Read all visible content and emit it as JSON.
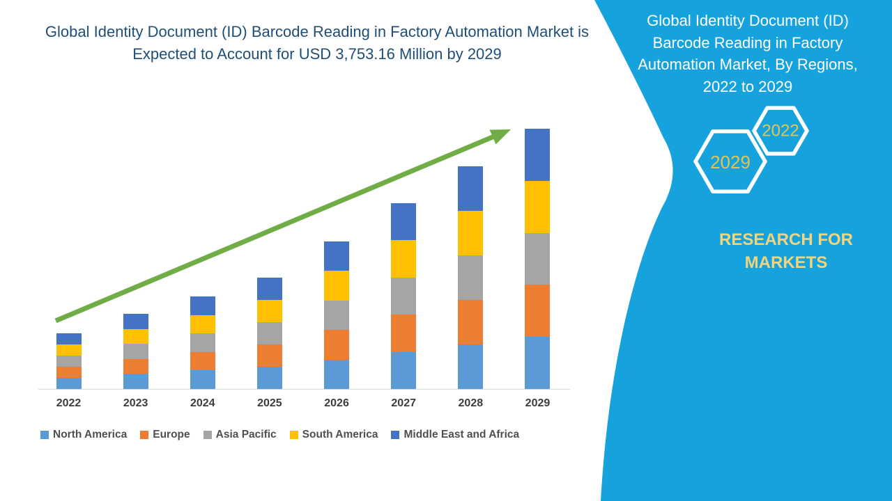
{
  "left_panel": {
    "title": "Global Identity Document (ID) Barcode Reading in Factory Automation Market is Expected to Account for USD 3,753.16 Million by 2029",
    "title_color": "#1F4E79"
  },
  "chart_data": {
    "type": "bar",
    "stacked": true,
    "title": "Global Identity Document (ID) Barcode Reading in Factory Automation Market is Expected to Account for USD 3,753.16 Million by 2029",
    "unit": "USD Million",
    "categories": [
      "2022",
      "2023",
      "2024",
      "2025",
      "2026",
      "2027",
      "2028",
      "2029"
    ],
    "series": [
      {
        "name": "North America",
        "color": "#5B9BD5",
        "values": [
          160,
          216,
          266.4,
          321.2,
          425.4,
          535.8,
          642.2,
          750.63
        ]
      },
      {
        "name": "Europe",
        "color": "#ED7D31",
        "values": [
          160,
          216,
          266.4,
          321.2,
          425.4,
          535.8,
          642.2,
          750.63
        ]
      },
      {
        "name": "Asia Pacific",
        "color": "#A5A5A5",
        "values": [
          160,
          216,
          266.4,
          321.2,
          425.4,
          535.8,
          642.2,
          750.63
        ]
      },
      {
        "name": "South America",
        "color": "#FFC000",
        "values": [
          160,
          216,
          266.4,
          321.2,
          425.4,
          535.8,
          642.2,
          750.63
        ]
      },
      {
        "name": "Middle East and Africa",
        "color": "#4472C4",
        "values": [
          160,
          216,
          266.4,
          321.2,
          425.4,
          535.8,
          642.2,
          750.63
        ]
      }
    ],
    "totals_usd_million": [
      800,
      1080,
      1332,
      1606,
      2127,
      2679,
      3211,
      3753.16
    ],
    "ylim": [
      0,
      3760
    ],
    "gridlines": false,
    "legend_position": "bottom",
    "annotation": {
      "type": "upward-trend-arrow",
      "color": "#70AD47",
      "from_category": "2022",
      "to_category": "2029"
    }
  },
  "right_panel": {
    "background_color": "#16A3DD",
    "title": "Global Identity Document (ID)\nBarcode Reading in Factory\nAutomation Market, By Regions,\n2022 to 2029",
    "hexagon_years": {
      "back": "2022",
      "front": "2029"
    },
    "brand": "RESEARCH FOR\nMARKETS",
    "year_text_color": "#E2C550",
    "brand_text_color": "#F0D47E"
  }
}
